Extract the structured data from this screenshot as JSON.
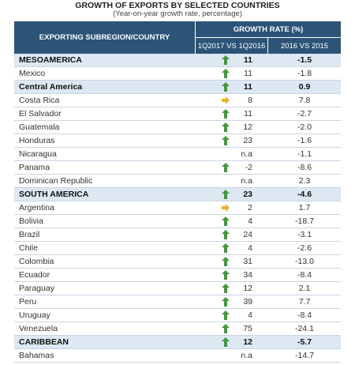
{
  "header": {
    "title": "GROWTH OF EXPORTS BY SELECTED COUNTRIES",
    "subtitle": "(Year-on-year growth rate, percentage)"
  },
  "table": {
    "columns": {
      "country": "EXPORTING SUBREGION/COUNTRY",
      "group": "GROWTH RATE (%)",
      "quarter": "1Q2017 VS 1Q2016",
      "annual": "2016 VS 2015"
    },
    "rows": [
      {
        "name": "MESOAMERICA",
        "kind": "region",
        "trend": "up",
        "quarter": "11",
        "annual": "-1.5"
      },
      {
        "name": "Mexico",
        "kind": "country",
        "trend": "up",
        "quarter": "11",
        "annual": "-1.8"
      },
      {
        "name": "Central America",
        "kind": "region",
        "trend": "up",
        "quarter": "11",
        "annual": "0.9"
      },
      {
        "name": "Costa Rica",
        "kind": "country",
        "trend": "right",
        "quarter": "8",
        "annual": "7.8"
      },
      {
        "name": "El Salvador",
        "kind": "country",
        "trend": "up",
        "quarter": "11",
        "annual": "-2.7"
      },
      {
        "name": "Guatemala",
        "kind": "country",
        "trend": "up",
        "quarter": "12",
        "annual": "-2.0"
      },
      {
        "name": "Honduras",
        "kind": "country",
        "trend": "up",
        "quarter": "23",
        "annual": "-1.6"
      },
      {
        "name": "Nicaragua",
        "kind": "country",
        "trend": "none",
        "quarter": "n.a",
        "annual": "-1.1"
      },
      {
        "name": "Panama",
        "kind": "country",
        "trend": "up",
        "quarter": "-2",
        "annual": "-8.6"
      },
      {
        "name": "Dominican Republic",
        "kind": "country",
        "trend": "none",
        "quarter": "n.a",
        "annual": "2.3"
      },
      {
        "name": "SOUTH AMERICA",
        "kind": "region",
        "trend": "up",
        "quarter": "23",
        "annual": "-4.6"
      },
      {
        "name": "Argentina",
        "kind": "country",
        "trend": "right",
        "quarter": "2",
        "annual": "1.7"
      },
      {
        "name": "Bolivia",
        "kind": "country",
        "trend": "up",
        "quarter": "4",
        "annual": "-18.7"
      },
      {
        "name": "Brazil",
        "kind": "country",
        "trend": "up",
        "quarter": "24",
        "annual": "-3.1"
      },
      {
        "name": "Chile",
        "kind": "country",
        "trend": "up",
        "quarter": "4",
        "annual": "-2.6"
      },
      {
        "name": "Colombia",
        "kind": "country",
        "trend": "up",
        "quarter": "31",
        "annual": "-13.0"
      },
      {
        "name": "Ecuador",
        "kind": "country",
        "trend": "up",
        "quarter": "34",
        "annual": "-8.4"
      },
      {
        "name": "Paraguay",
        "kind": "country",
        "trend": "up",
        "quarter": "12",
        "annual": "2.1"
      },
      {
        "name": "Peru",
        "kind": "country",
        "trend": "up",
        "quarter": "39",
        "annual": "7.7"
      },
      {
        "name": "Uruguay",
        "kind": "country",
        "trend": "up",
        "quarter": "4",
        "annual": "-8.4"
      },
      {
        "name": "Venezuela",
        "kind": "country",
        "trend": "up",
        "quarter": "75",
        "annual": "-24.1"
      },
      {
        "name": "CARIBBEAN",
        "kind": "region",
        "trend": "up",
        "quarter": "12",
        "annual": "-5.7"
      },
      {
        "name": "Bahamas",
        "kind": "country",
        "trend": "none",
        "quarter": "n.a",
        "annual": "-14.7"
      }
    ]
  }
}
